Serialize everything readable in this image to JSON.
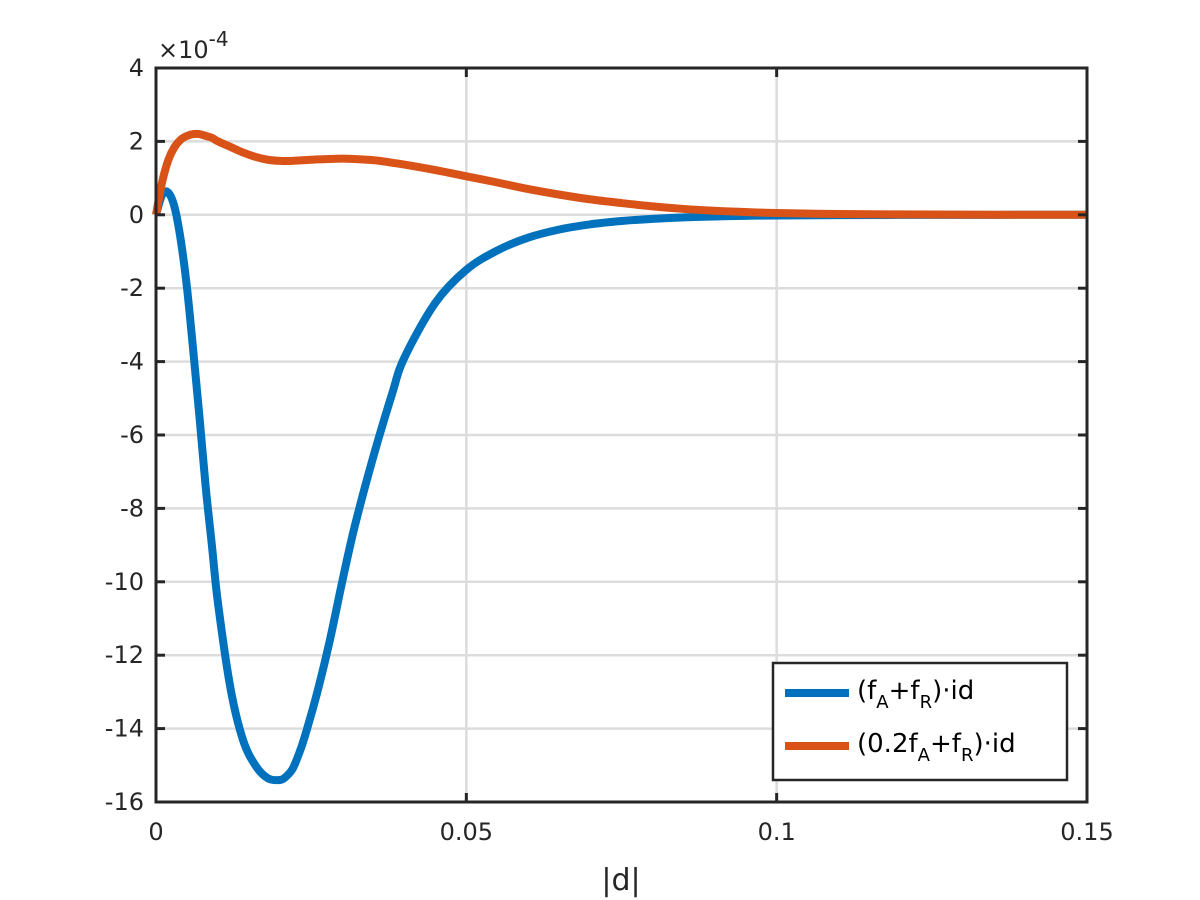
{
  "chart_data": {
    "type": "line",
    "xlabel": "|d|",
    "ylabel": "",
    "title": "",
    "y_exponent_label": "×10",
    "y_exponent_power": "-4",
    "xlim": [
      0,
      0.15
    ],
    "ylim": [
      -16,
      4
    ],
    "xticks": [
      0,
      0.05,
      0.1,
      0.15
    ],
    "xtick_labels": [
      "0",
      "0.05",
      "0.1",
      "0.15"
    ],
    "yticks": [
      4,
      2,
      0,
      -2,
      -4,
      -6,
      -8,
      -10,
      -12,
      -14,
      -16
    ],
    "ytick_labels": [
      "4",
      "2",
      "0",
      "-2",
      "-4",
      "-6",
      "-8",
      "-10",
      "-12",
      "-14",
      "-16"
    ],
    "grid": true,
    "legend_position": "bottom-right",
    "series": [
      {
        "name_main": "(f",
        "name_sub1": "A",
        "name_mid": "+f",
        "name_sub2": "R",
        "name_end": ")·id",
        "color": "#0072BD",
        "x": [
          0,
          0.001,
          0.002,
          0.003,
          0.004,
          0.005,
          0.006,
          0.007,
          0.008,
          0.009,
          0.01,
          0.012,
          0.014,
          0.016,
          0.018,
          0.02,
          0.021,
          0.022,
          0.023,
          0.024,
          0.026,
          0.028,
          0.03,
          0.032,
          0.035,
          0.038,
          0.04,
          0.045,
          0.05,
          0.055,
          0.06,
          0.065,
          0.07,
          0.075,
          0.08,
          0.085,
          0.09,
          0.095,
          0.1,
          0.11,
          0.12,
          0.13,
          0.14,
          0.15
        ],
        "y": [
          0,
          0.55,
          0.6,
          0.2,
          -0.7,
          -2.0,
          -3.7,
          -5.5,
          -7.4,
          -9.0,
          -10.6,
          -12.9,
          -14.3,
          -15.0,
          -15.35,
          -15.4,
          -15.3,
          -15.1,
          -14.7,
          -14.2,
          -13.0,
          -11.6,
          -10.0,
          -8.5,
          -6.6,
          -4.9,
          -3.9,
          -2.4,
          -1.5,
          -0.97,
          -0.62,
          -0.4,
          -0.26,
          -0.17,
          -0.11,
          -0.07,
          -0.045,
          -0.028,
          -0.018,
          -0.008,
          -0.003,
          -0.001,
          0,
          0
        ]
      },
      {
        "name_main": "(0.2f",
        "name_sub1": "A",
        "name_mid": "+f",
        "name_sub2": "R",
        "name_end": ")·id",
        "color": "#D95319",
        "x": [
          0,
          0.001,
          0.002,
          0.003,
          0.004,
          0.005,
          0.006,
          0.007,
          0.008,
          0.009,
          0.01,
          0.012,
          0.014,
          0.016,
          0.018,
          0.02,
          0.022,
          0.024,
          0.026,
          0.028,
          0.03,
          0.032,
          0.034,
          0.036,
          0.038,
          0.04,
          0.045,
          0.05,
          0.055,
          0.06,
          0.065,
          0.07,
          0.075,
          0.08,
          0.085,
          0.09,
          0.095,
          0.1,
          0.11,
          0.12,
          0.13,
          0.14,
          0.15
        ],
        "y": [
          0,
          0.9,
          1.5,
          1.85,
          2.05,
          2.15,
          2.2,
          2.2,
          2.15,
          2.1,
          2.0,
          1.85,
          1.7,
          1.58,
          1.5,
          1.47,
          1.47,
          1.49,
          1.51,
          1.52,
          1.53,
          1.52,
          1.5,
          1.47,
          1.42,
          1.37,
          1.22,
          1.05,
          0.88,
          0.7,
          0.55,
          0.42,
          0.32,
          0.23,
          0.16,
          0.11,
          0.075,
          0.05,
          0.022,
          0.01,
          0.004,
          0.001,
          0
        ]
      }
    ]
  }
}
